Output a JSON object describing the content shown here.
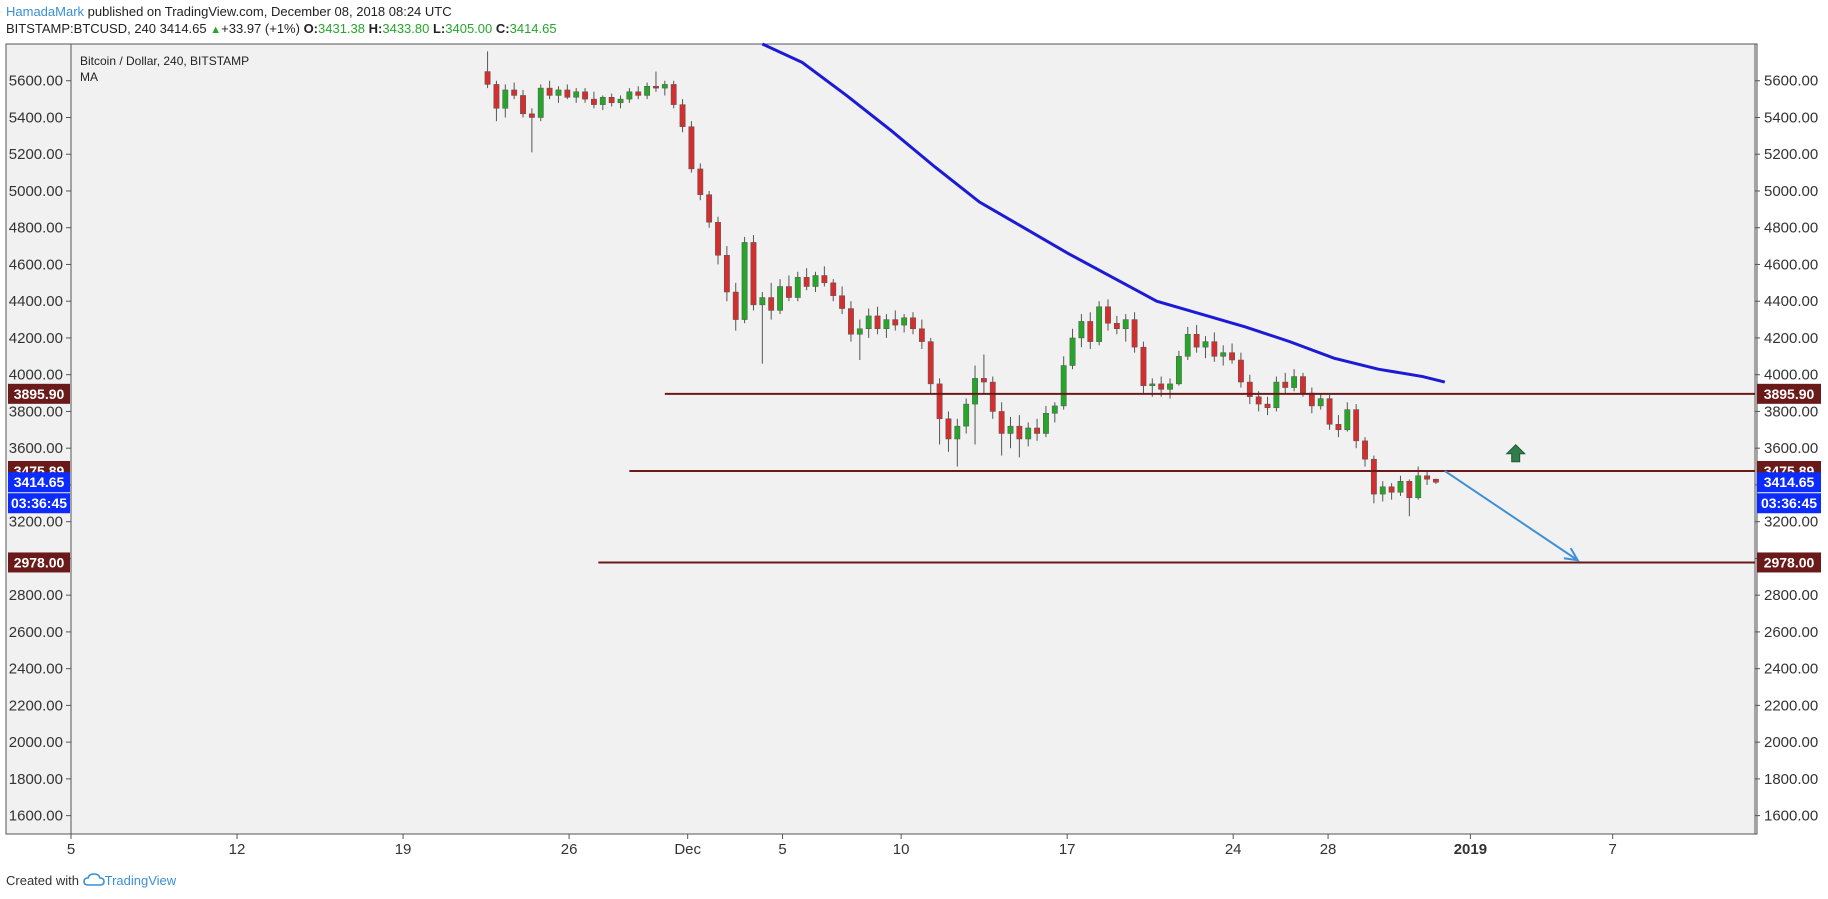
{
  "header": {
    "author": "HamadaMark",
    "published": " published on TradingView.com, December 08, 2018 08:24 UTC",
    "symbol": "BITSTAMP:BTCUSD, 240",
    "price": "3414.65",
    "change": "+33.97 (+1%)",
    "o_label": "O:",
    "o_value": "3431.38",
    "h_label": "H:",
    "h_value": "3433.80",
    "l_label": "L:",
    "l_value": "3405.00",
    "c_label": "C:",
    "c_value": "3414.65"
  },
  "footer": {
    "created_with": "Created with",
    "brand": "TradingView"
  },
  "colors": {
    "up": "#26a629",
    "down": "#d32f2f",
    "ma": "#1b1bd6",
    "level": "#6b1a1a",
    "current": "#0b2bff",
    "arrow_target": "#3f8fd6",
    "arrow_up": "#2f7d4a"
  },
  "icons": [
    "triangle-up-icon",
    "green-up-arrow-icon",
    "tradingview-cloud-icon"
  ],
  "chart_data": {
    "type": "candlestick",
    "title": "Bitcoin / Dollar, 240, BITSTAMP",
    "indicator": "MA",
    "ylim": [
      1500,
      5800
    ],
    "yticks": [
      1600,
      1800,
      2000,
      2200,
      2400,
      2600,
      2800,
      3000,
      3200,
      3400,
      3600,
      3800,
      4000,
      4200,
      4400,
      4600,
      4800,
      5000,
      5200,
      5400,
      5600
    ],
    "xticks": [
      "5",
      "12",
      "19",
      "26",
      "Dec",
      "5",
      "10",
      "17",
      "24",
      "28",
      "2019",
      "7"
    ],
    "xlim_days": [
      5,
      43
    ],
    "grid": false,
    "candles": [
      {
        "t": 14.4,
        "o": 5650,
        "h": 5760,
        "l": 5560,
        "c": 5580
      },
      {
        "t": 14.6,
        "o": 5580,
        "h": 5600,
        "l": 5380,
        "c": 5450
      },
      {
        "t": 14.8,
        "o": 5450,
        "h": 5580,
        "l": 5400,
        "c": 5550
      },
      {
        "t": 15.0,
        "o": 5550,
        "h": 5590,
        "l": 5500,
        "c": 5520
      },
      {
        "t": 15.2,
        "o": 5520,
        "h": 5550,
        "l": 5400,
        "c": 5420
      },
      {
        "t": 15.4,
        "o": 5420,
        "h": 5450,
        "l": 5210,
        "c": 5400
      },
      {
        "t": 15.6,
        "o": 5400,
        "h": 5580,
        "l": 5380,
        "c": 5560
      },
      {
        "t": 15.8,
        "o": 5560,
        "h": 5600,
        "l": 5500,
        "c": 5520
      },
      {
        "t": 16.0,
        "o": 5520,
        "h": 5570,
        "l": 5480,
        "c": 5550
      },
      {
        "t": 16.2,
        "o": 5550,
        "h": 5580,
        "l": 5500,
        "c": 5510
      },
      {
        "t": 16.4,
        "o": 5510,
        "h": 5560,
        "l": 5480,
        "c": 5540
      },
      {
        "t": 16.6,
        "o": 5540,
        "h": 5560,
        "l": 5480,
        "c": 5500
      },
      {
        "t": 16.8,
        "o": 5500,
        "h": 5540,
        "l": 5450,
        "c": 5470
      },
      {
        "t": 17.0,
        "o": 5470,
        "h": 5520,
        "l": 5440,
        "c": 5510
      },
      {
        "t": 17.2,
        "o": 5510,
        "h": 5530,
        "l": 5460,
        "c": 5480
      },
      {
        "t": 17.4,
        "o": 5480,
        "h": 5520,
        "l": 5450,
        "c": 5500
      },
      {
        "t": 17.6,
        "o": 5500,
        "h": 5560,
        "l": 5480,
        "c": 5540
      },
      {
        "t": 17.8,
        "o": 5540,
        "h": 5570,
        "l": 5500,
        "c": 5520
      },
      {
        "t": 18.0,
        "o": 5520,
        "h": 5590,
        "l": 5500,
        "c": 5570
      },
      {
        "t": 18.2,
        "o": 5570,
        "h": 5650,
        "l": 5540,
        "c": 5560
      },
      {
        "t": 18.4,
        "o": 5560,
        "h": 5600,
        "l": 5520,
        "c": 5580
      },
      {
        "t": 18.6,
        "o": 5580,
        "h": 5600,
        "l": 5450,
        "c": 5470
      },
      {
        "t": 18.8,
        "o": 5470,
        "h": 5500,
        "l": 5320,
        "c": 5350
      },
      {
        "t": 19.0,
        "o": 5350,
        "h": 5380,
        "l": 5100,
        "c": 5120
      },
      {
        "t": 19.2,
        "o": 5120,
        "h": 5150,
        "l": 4950,
        "c": 4980
      },
      {
        "t": 19.4,
        "o": 4980,
        "h": 5000,
        "l": 4800,
        "c": 4830
      },
      {
        "t": 19.6,
        "o": 4830,
        "h": 4860,
        "l": 4600,
        "c": 4650
      },
      {
        "t": 19.8,
        "o": 4650,
        "h": 4700,
        "l": 4400,
        "c": 4450
      },
      {
        "t": 20.0,
        "o": 4450,
        "h": 4500,
        "l": 4240,
        "c": 4300
      },
      {
        "t": 20.2,
        "o": 4300,
        "h": 4750,
        "l": 4280,
        "c": 4720
      },
      {
        "t": 20.4,
        "o": 4720,
        "h": 4760,
        "l": 4350,
        "c": 4380
      },
      {
        "t": 20.6,
        "o": 4380,
        "h": 4450,
        "l": 4060,
        "c": 4420
      },
      {
        "t": 20.8,
        "o": 4420,
        "h": 4500,
        "l": 4300,
        "c": 4350
      },
      {
        "t": 21.0,
        "o": 4350,
        "h": 4520,
        "l": 4330,
        "c": 4480
      },
      {
        "t": 21.2,
        "o": 4480,
        "h": 4540,
        "l": 4400,
        "c": 4420
      },
      {
        "t": 21.4,
        "o": 4420,
        "h": 4560,
        "l": 4400,
        "c": 4530
      },
      {
        "t": 21.6,
        "o": 4530,
        "h": 4580,
        "l": 4460,
        "c": 4480
      },
      {
        "t": 21.8,
        "o": 4480,
        "h": 4560,
        "l": 4450,
        "c": 4540
      },
      {
        "t": 22.0,
        "o": 4540,
        "h": 4590,
        "l": 4480,
        "c": 4500
      },
      {
        "t": 22.2,
        "o": 4500,
        "h": 4520,
        "l": 4400,
        "c": 4430
      },
      {
        "t": 22.4,
        "o": 4430,
        "h": 4480,
        "l": 4330,
        "c": 4360
      },
      {
        "t": 22.6,
        "o": 4360,
        "h": 4400,
        "l": 4180,
        "c": 4220
      },
      {
        "t": 22.8,
        "o": 4220,
        "h": 4300,
        "l": 4080,
        "c": 4250
      },
      {
        "t": 23.0,
        "o": 4250,
        "h": 4360,
        "l": 4200,
        "c": 4320
      },
      {
        "t": 23.2,
        "o": 4320,
        "h": 4370,
        "l": 4220,
        "c": 4250
      },
      {
        "t": 23.4,
        "o": 4250,
        "h": 4330,
        "l": 4200,
        "c": 4300
      },
      {
        "t": 23.6,
        "o": 4300,
        "h": 4350,
        "l": 4240,
        "c": 4270
      },
      {
        "t": 23.8,
        "o": 4270,
        "h": 4330,
        "l": 4230,
        "c": 4310
      },
      {
        "t": 24.0,
        "o": 4310,
        "h": 4340,
        "l": 4220,
        "c": 4250
      },
      {
        "t": 24.2,
        "o": 4250,
        "h": 4300,
        "l": 4140,
        "c": 4180
      },
      {
        "t": 24.4,
        "o": 4180,
        "h": 4200,
        "l": 3900,
        "c": 3950
      },
      {
        "t": 24.6,
        "o": 3950,
        "h": 3980,
        "l": 3620,
        "c": 3760
      },
      {
        "t": 24.8,
        "o": 3760,
        "h": 3800,
        "l": 3580,
        "c": 3650
      },
      {
        "t": 25.0,
        "o": 3650,
        "h": 3760,
        "l": 3500,
        "c": 3720
      },
      {
        "t": 25.2,
        "o": 3720,
        "h": 3870,
        "l": 3680,
        "c": 3840
      },
      {
        "t": 25.4,
        "o": 3840,
        "h": 4050,
        "l": 3620,
        "c": 3980
      },
      {
        "t": 25.6,
        "o": 3980,
        "h": 4110,
        "l": 3900,
        "c": 3960
      },
      {
        "t": 25.8,
        "o": 3960,
        "h": 3990,
        "l": 3760,
        "c": 3800
      },
      {
        "t": 26.0,
        "o": 3800,
        "h": 3850,
        "l": 3560,
        "c": 3680
      },
      {
        "t": 26.2,
        "o": 3680,
        "h": 3770,
        "l": 3600,
        "c": 3720
      },
      {
        "t": 26.4,
        "o": 3720,
        "h": 3780,
        "l": 3550,
        "c": 3650
      },
      {
        "t": 26.6,
        "o": 3650,
        "h": 3740,
        "l": 3610,
        "c": 3710
      },
      {
        "t": 26.8,
        "o": 3710,
        "h": 3760,
        "l": 3640,
        "c": 3680
      },
      {
        "t": 27.0,
        "o": 3680,
        "h": 3830,
        "l": 3660,
        "c": 3790
      },
      {
        "t": 27.2,
        "o": 3790,
        "h": 3850,
        "l": 3740,
        "c": 3830
      },
      {
        "t": 27.4,
        "o": 3830,
        "h": 4100,
        "l": 3810,
        "c": 4050
      },
      {
        "t": 27.6,
        "o": 4050,
        "h": 4250,
        "l": 4030,
        "c": 4200
      },
      {
        "t": 27.8,
        "o": 4200,
        "h": 4330,
        "l": 4150,
        "c": 4290
      },
      {
        "t": 28.0,
        "o": 4290,
        "h": 4340,
        "l": 4140,
        "c": 4180
      },
      {
        "t": 28.2,
        "o": 4180,
        "h": 4400,
        "l": 4160,
        "c": 4370
      },
      {
        "t": 28.4,
        "o": 4370,
        "h": 4410,
        "l": 4240,
        "c": 4280
      },
      {
        "t": 28.6,
        "o": 4280,
        "h": 4320,
        "l": 4220,
        "c": 4250
      },
      {
        "t": 28.8,
        "o": 4250,
        "h": 4330,
        "l": 4180,
        "c": 4300
      },
      {
        "t": 29.0,
        "o": 4300,
        "h": 4340,
        "l": 4120,
        "c": 4150
      },
      {
        "t": 29.2,
        "o": 4150,
        "h": 4180,
        "l": 3900,
        "c": 3940
      },
      {
        "t": 29.4,
        "o": 3940,
        "h": 3980,
        "l": 3880,
        "c": 3950
      },
      {
        "t": 29.6,
        "o": 3950,
        "h": 3990,
        "l": 3880,
        "c": 3920
      },
      {
        "t": 29.8,
        "o": 3920,
        "h": 3980,
        "l": 3870,
        "c": 3950
      },
      {
        "t": 30.0,
        "o": 3950,
        "h": 4130,
        "l": 3940,
        "c": 4100
      },
      {
        "t": 30.2,
        "o": 4100,
        "h": 4260,
        "l": 4080,
        "c": 4220
      },
      {
        "t": 30.4,
        "o": 4220,
        "h": 4270,
        "l": 4120,
        "c": 4150
      },
      {
        "t": 30.6,
        "o": 4150,
        "h": 4210,
        "l": 4090,
        "c": 4180
      },
      {
        "t": 30.8,
        "o": 4180,
        "h": 4230,
        "l": 4070,
        "c": 4100
      },
      {
        "t": 31.0,
        "o": 4100,
        "h": 4160,
        "l": 4050,
        "c": 4120
      },
      {
        "t": 31.2,
        "o": 4120,
        "h": 4170,
        "l": 4060,
        "c": 4080
      },
      {
        "t": 31.4,
        "o": 4080,
        "h": 4120,
        "l": 3930,
        "c": 3960
      },
      {
        "t": 31.6,
        "o": 3960,
        "h": 4000,
        "l": 3840,
        "c": 3880
      },
      {
        "t": 31.8,
        "o": 3880,
        "h": 3910,
        "l": 3800,
        "c": 3840
      },
      {
        "t": 32.0,
        "o": 3840,
        "h": 3880,
        "l": 3780,
        "c": 3820
      },
      {
        "t": 32.2,
        "o": 3820,
        "h": 3990,
        "l": 3800,
        "c": 3960
      },
      {
        "t": 32.4,
        "o": 3960,
        "h": 4010,
        "l": 3900,
        "c": 3930
      },
      {
        "t": 32.6,
        "o": 3930,
        "h": 4030,
        "l": 3910,
        "c": 3990
      },
      {
        "t": 32.8,
        "o": 3990,
        "h": 4010,
        "l": 3880,
        "c": 3900
      },
      {
        "t": 33.0,
        "o": 3900,
        "h": 3930,
        "l": 3790,
        "c": 3830
      },
      {
        "t": 33.2,
        "o": 3830,
        "h": 3900,
        "l": 3810,
        "c": 3870
      },
      {
        "t": 33.4,
        "o": 3870,
        "h": 3890,
        "l": 3700,
        "c": 3730
      },
      {
        "t": 33.6,
        "o": 3730,
        "h": 3780,
        "l": 3660,
        "c": 3700
      },
      {
        "t": 33.8,
        "o": 3700,
        "h": 3850,
        "l": 3690,
        "c": 3810
      },
      {
        "t": 34.0,
        "o": 3810,
        "h": 3840,
        "l": 3600,
        "c": 3640
      },
      {
        "t": 34.2,
        "o": 3640,
        "h": 3660,
        "l": 3500,
        "c": 3540
      },
      {
        "t": 34.4,
        "o": 3540,
        "h": 3560,
        "l": 3300,
        "c": 3350
      },
      {
        "t": 34.6,
        "o": 3350,
        "h": 3420,
        "l": 3310,
        "c": 3390
      },
      {
        "t": 34.8,
        "o": 3390,
        "h": 3410,
        "l": 3320,
        "c": 3360
      },
      {
        "t": 35.0,
        "o": 3360,
        "h": 3450,
        "l": 3340,
        "c": 3420
      },
      {
        "t": 35.2,
        "o": 3420,
        "h": 3430,
        "l": 3230,
        "c": 3330
      },
      {
        "t": 35.4,
        "o": 3330,
        "h": 3500,
        "l": 3320,
        "c": 3450
      },
      {
        "t": 35.6,
        "o": 3450,
        "h": 3480,
        "l": 3400,
        "c": 3431
      },
      {
        "t": 35.8,
        "o": 3431.38,
        "h": 3433.8,
        "l": 3405,
        "c": 3414.65
      }
    ],
    "ma_series": [
      {
        "t": 20.6,
        "v": 5800
      },
      {
        "t": 21.5,
        "v": 5700
      },
      {
        "t": 22.5,
        "v": 5520
      },
      {
        "t": 23.5,
        "v": 5330
      },
      {
        "t": 24.5,
        "v": 5130
      },
      {
        "t": 25.5,
        "v": 4940
      },
      {
        "t": 26.5,
        "v": 4800
      },
      {
        "t": 27.5,
        "v": 4660
      },
      {
        "t": 28.5,
        "v": 4530
      },
      {
        "t": 29.5,
        "v": 4400
      },
      {
        "t": 30.5,
        "v": 4330
      },
      {
        "t": 31.5,
        "v": 4260
      },
      {
        "t": 32.5,
        "v": 4180
      },
      {
        "t": 33.5,
        "v": 4090
      },
      {
        "t": 34.5,
        "v": 4030
      },
      {
        "t": 35.5,
        "v": 3990
      },
      {
        "t": 36.0,
        "v": 3960
      }
    ],
    "levels": [
      {
        "price": 3895.9,
        "label": "3895.90",
        "from_t": 18.4
      },
      {
        "price": 3475.89,
        "label": "3475.89",
        "from_t": 17.6
      },
      {
        "price": 2978.0,
        "label": "2978.00",
        "from_t": 16.9
      }
    ],
    "current_price": {
      "price": 3414.65,
      "label": "3414.65",
      "countdown": "03:36:45"
    },
    "projection_arrow": {
      "from_t": 36.0,
      "from_v": 3476,
      "to_t": 39.0,
      "to_v": 2990
    },
    "up_marker": {
      "t": 37.6,
      "v": 3570
    }
  }
}
